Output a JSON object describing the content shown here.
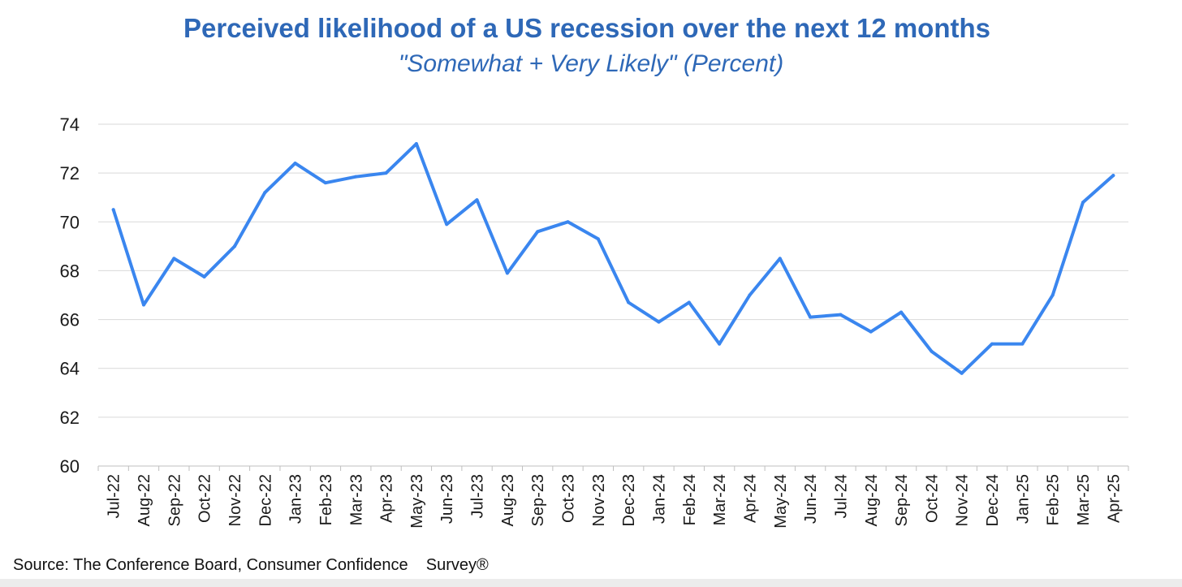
{
  "chart_data": {
    "type": "line",
    "title": "Perceived likelihood of a US recession over the next 12 months",
    "subtitle": "\"Somewhat + Very Likely\" (Percent)",
    "ylim": [
      60,
      74
    ],
    "yticks": [
      60,
      62,
      64,
      66,
      68,
      70,
      72,
      74
    ],
    "grid": true,
    "legend": "none",
    "colors": {
      "line": "#3a86ef",
      "grid": "#d9d9d9",
      "title": "#2e68b7"
    },
    "categories": [
      "Jul-22",
      "Aug-22",
      "Sep-22",
      "Oct-22",
      "Nov-22",
      "Dec-22",
      "Jan-23",
      "Feb-23",
      "Mar-23",
      "Apr-23",
      "May-23",
      "Jun-23",
      "Jul-23",
      "Aug-23",
      "Sep-23",
      "Oct-23",
      "Nov-23",
      "Dec-23",
      "Jan-24",
      "Feb-24",
      "Mar-24",
      "Apr-24",
      "May-24",
      "Jun-24",
      "Jul-24",
      "Aug-24",
      "Sep-24",
      "Oct-24",
      "Nov-24",
      "Dec-24",
      "Jan-25",
      "Feb-25",
      "Mar-25",
      "Apr-25"
    ],
    "series": [
      {
        "values": [
          70.5,
          66.6,
          68.5,
          67.75,
          69.0,
          71.2,
          72.4,
          71.6,
          71.85,
          72.0,
          73.2,
          69.9,
          70.9,
          67.9,
          69.6,
          70.0,
          69.3,
          66.7,
          65.9,
          66.7,
          65.0,
          67.0,
          68.5,
          66.1,
          66.2,
          65.5,
          66.3,
          64.7,
          63.8,
          65.0,
          65.0,
          67.0,
          70.8,
          71.9
        ]
      }
    ]
  },
  "footer": {
    "source": "Source: The Conference Board, Consumer Confidence    Survey®"
  }
}
